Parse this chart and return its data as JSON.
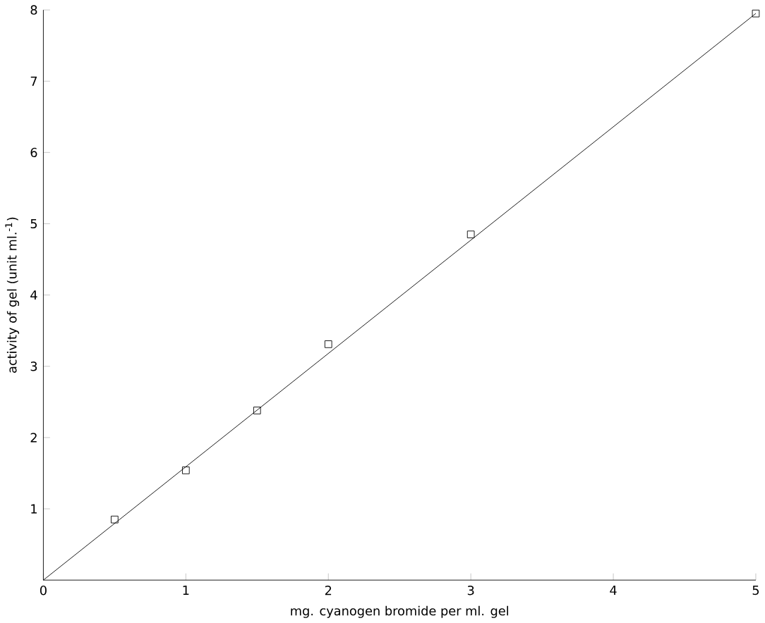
{
  "chart_data": {
    "type": "scatter",
    "xlabel": "mg. cyanogen bromide per ml. gel",
    "ylabel": "activity of gel (unit ml.$^{-1}$)",
    "xlim": [
      0,
      5
    ],
    "ylim": [
      0,
      8
    ],
    "xticks": [
      0,
      1,
      2,
      3,
      4,
      5
    ],
    "yticks": [
      1,
      2,
      3,
      4,
      5,
      6,
      7,
      8
    ],
    "marker": "square",
    "grid": false,
    "series": [
      {
        "color": "#000000",
        "x": [
          0.5,
          1,
          1.5,
          2,
          3,
          5
        ],
        "values": [
          0.85,
          1.54,
          2.38,
          3.31,
          4.85,
          7.95
        ]
      },
      {
        "type": "line",
        "color": "#000000",
        "x": [
          0,
          5
        ],
        "values": [
          0,
          7.95
        ],
        "marker": "none",
        "line_style": "solid"
      }
    ]
  }
}
